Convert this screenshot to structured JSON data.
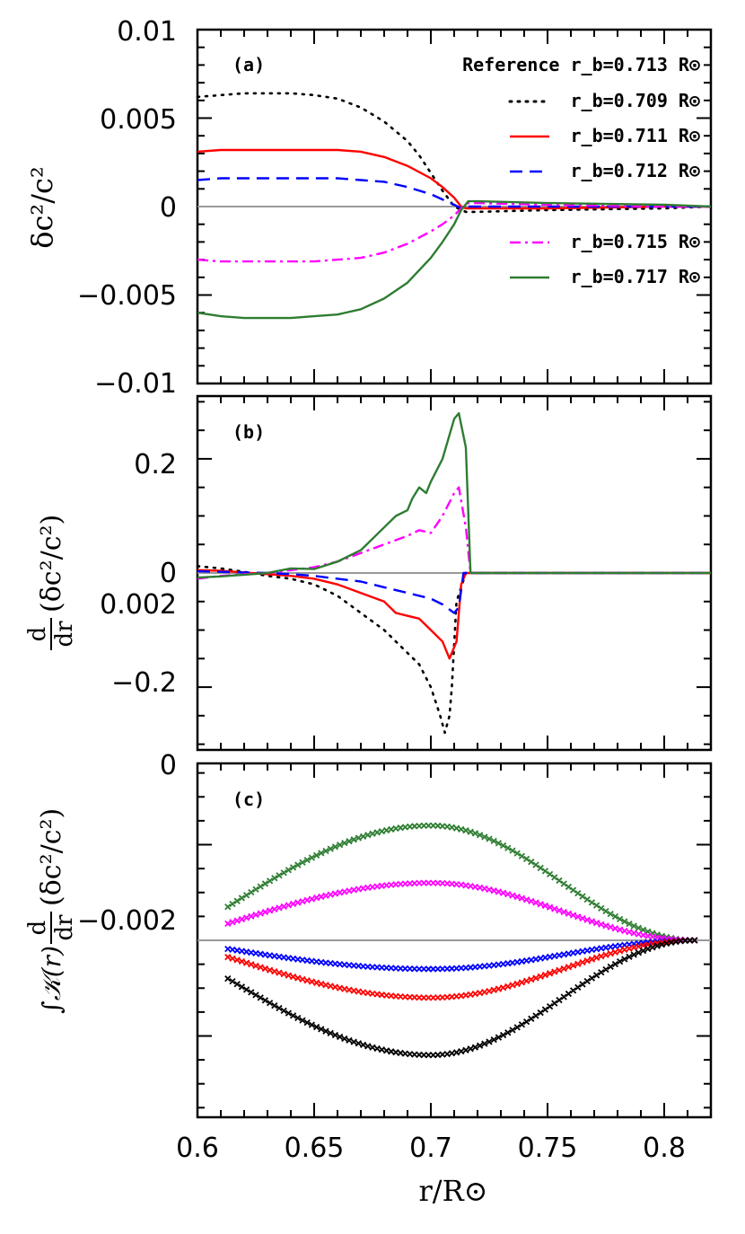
{
  "chart_data": [
    {
      "type": "line",
      "panel_label": "(a)",
      "ylabel": "δc²/c²",
      "ylim": [
        -0.01,
        0.01
      ],
      "xlim": [
        0.6,
        0.82
      ],
      "yticks": [
        -0.01,
        -0.005,
        0,
        0.005,
        0.01
      ],
      "ytick_labels": [
        "−0.01",
        "−0.005",
        "0",
        "0.005",
        "0.01"
      ],
      "legend_title": "Reference r_b=0.713 R⊙",
      "legend_placement": "top-right",
      "zero_line": true,
      "series": [
        {
          "name": "r_b=0.709 R⊙",
          "color": "#000000",
          "dash": "dotted",
          "x": [
            0.6,
            0.61,
            0.62,
            0.63,
            0.64,
            0.65,
            0.66,
            0.67,
            0.68,
            0.69,
            0.695,
            0.7,
            0.705,
            0.71,
            0.715,
            0.72,
            0.75,
            0.8,
            0.82
          ],
          "y": [
            0.0062,
            0.0063,
            0.0064,
            0.0064,
            0.0064,
            0.0063,
            0.0061,
            0.0056,
            0.0048,
            0.0037,
            0.0029,
            0.0019,
            0.0009,
            0.0,
            -0.0003,
            -0.0003,
            -0.0002,
            -0.0001,
            0.0
          ]
        },
        {
          "name": "r_b=0.711 R⊙",
          "color": "#ff0000",
          "dash": "solid",
          "x": [
            0.6,
            0.61,
            0.62,
            0.63,
            0.64,
            0.65,
            0.66,
            0.67,
            0.68,
            0.69,
            0.7,
            0.705,
            0.71,
            0.713,
            0.715,
            0.72,
            0.75,
            0.8,
            0.82
          ],
          "y": [
            0.0031,
            0.0032,
            0.0032,
            0.0032,
            0.0032,
            0.0032,
            0.0032,
            0.0031,
            0.0028,
            0.0023,
            0.0016,
            0.0011,
            0.0005,
            0.0,
            -0.0001,
            -0.0001,
            -0.0001,
            0.0,
            0.0
          ]
        },
        {
          "name": "r_b=0.712 R⊙",
          "color": "#0000ff",
          "dash": "dashed",
          "x": [
            0.6,
            0.61,
            0.62,
            0.63,
            0.64,
            0.65,
            0.66,
            0.67,
            0.68,
            0.69,
            0.7,
            0.705,
            0.71,
            0.713,
            0.715,
            0.72,
            0.75,
            0.8,
            0.82
          ],
          "y": [
            0.0015,
            0.0016,
            0.0016,
            0.0016,
            0.0016,
            0.0016,
            0.0016,
            0.0015,
            0.0014,
            0.0011,
            0.0007,
            0.0004,
            0.0001,
            -0.0001,
            0.0,
            0.0,
            0.0,
            0.0,
            0.0
          ]
        },
        {
          "name": "r_b=0.715 R⊙",
          "color": "#ff00ff",
          "dash": "dashdot",
          "x": [
            0.6,
            0.61,
            0.62,
            0.63,
            0.64,
            0.65,
            0.66,
            0.67,
            0.68,
            0.69,
            0.7,
            0.705,
            0.71,
            0.713,
            0.716,
            0.72,
            0.75,
            0.8,
            0.82
          ],
          "y": [
            -0.003,
            -0.0031,
            -0.0031,
            -0.0031,
            -0.0031,
            -0.0031,
            -0.003,
            -0.0029,
            -0.0026,
            -0.0021,
            -0.0014,
            -0.001,
            -0.0005,
            -0.0001,
            0.0002,
            0.0002,
            0.0001,
            0.0,
            0.0
          ]
        },
        {
          "name": "r_b=0.717 R⊙",
          "color": "#2e7d32",
          "dash": "solid",
          "x": [
            0.6,
            0.61,
            0.62,
            0.63,
            0.64,
            0.65,
            0.66,
            0.67,
            0.68,
            0.69,
            0.7,
            0.705,
            0.71,
            0.713,
            0.716,
            0.72,
            0.75,
            0.8,
            0.82
          ],
          "y": [
            -0.006,
            -0.0062,
            -0.0063,
            -0.0063,
            -0.0063,
            -0.0062,
            -0.0061,
            -0.0058,
            -0.0052,
            -0.0043,
            -0.0029,
            -0.002,
            -0.001,
            -0.0002,
            0.0003,
            0.0003,
            0.0002,
            0.0001,
            0.0
          ]
        }
      ]
    },
    {
      "type": "line",
      "panel_label": "(b)",
      "ylabel_top": "d",
      "ylabel_bottom": "dr",
      "ylabel_rest": "(δc²/c²)",
      "ylim": [
        -0.31,
        0.31
      ],
      "xlim": [
        0.6,
        0.82
      ],
      "yticks": [
        -0.2,
        0,
        0.2
      ],
      "ytick_labels": [
        "−0.2",
        "0",
        "0.2"
      ],
      "zero_line": true,
      "series": [
        {
          "name": "r_b=0.709 R⊙",
          "color": "#000000",
          "dash": "dotted",
          "x": [
            0.6,
            0.61,
            0.62,
            0.63,
            0.64,
            0.65,
            0.66,
            0.67,
            0.68,
            0.69,
            0.695,
            0.7,
            0.704,
            0.706,
            0.708,
            0.709,
            0.711,
            0.715,
            0.75,
            0.8,
            0.82
          ],
          "y": [
            0.012,
            0.008,
            0.002,
            -0.005,
            -0.01,
            -0.02,
            -0.04,
            -0.07,
            -0.1,
            -0.14,
            -0.16,
            -0.2,
            -0.25,
            -0.28,
            -0.25,
            -0.2,
            -0.05,
            0.0,
            0.0,
            0.0,
            0.0
          ]
        },
        {
          "name": "r_b=0.711 R⊙",
          "color": "#ff0000",
          "dash": "solid",
          "x": [
            0.6,
            0.61,
            0.62,
            0.63,
            0.64,
            0.65,
            0.66,
            0.67,
            0.68,
            0.685,
            0.69,
            0.695,
            0.7,
            0.705,
            0.708,
            0.711,
            0.713,
            0.715,
            0.75,
            0.8,
            0.82
          ],
          "y": [
            0.005,
            0.004,
            0.001,
            -0.002,
            -0.005,
            -0.01,
            -0.02,
            -0.035,
            -0.05,
            -0.07,
            -0.075,
            -0.08,
            -0.1,
            -0.12,
            -0.15,
            -0.12,
            -0.02,
            0.0,
            0.0,
            0.0,
            0.0
          ]
        },
        {
          "name": "r_b=0.712 R⊙",
          "color": "#0000ff",
          "dash": "dashed",
          "x": [
            0.6,
            0.61,
            0.62,
            0.63,
            0.64,
            0.65,
            0.66,
            0.67,
            0.68,
            0.69,
            0.7,
            0.705,
            0.71,
            0.712,
            0.714,
            0.716,
            0.75,
            0.8,
            0.82
          ],
          "y": [
            0.003,
            0.002,
            0.001,
            0.0,
            -0.002,
            -0.005,
            -0.01,
            -0.015,
            -0.025,
            -0.035,
            -0.045,
            -0.055,
            -0.07,
            -0.06,
            0.0,
            0.0,
            0.0,
            0.0,
            0.0
          ]
        },
        {
          "name": "r_b=0.715 R⊙",
          "color": "#ff00ff",
          "dash": "dashdot",
          "x": [
            0.6,
            0.61,
            0.62,
            0.63,
            0.64,
            0.65,
            0.66,
            0.67,
            0.68,
            0.69,
            0.695,
            0.7,
            0.705,
            0.71,
            0.712,
            0.715,
            0.717,
            0.75,
            0.8,
            0.82
          ],
          "y": [
            -0.01,
            -0.005,
            -0.002,
            0.0,
            0.005,
            0.01,
            0.02,
            0.035,
            0.05,
            0.065,
            0.075,
            0.07,
            0.1,
            0.14,
            0.15,
            0.08,
            0.0,
            0.0,
            0.0,
            0.0
          ]
        },
        {
          "name": "r_b=0.717 R⊙",
          "color": "#2e7d32",
          "dash": "solid",
          "x": [
            0.6,
            0.61,
            0.62,
            0.63,
            0.64,
            0.65,
            0.66,
            0.67,
            0.68,
            0.685,
            0.69,
            0.692,
            0.695,
            0.698,
            0.7,
            0.705,
            0.71,
            0.712,
            0.715,
            0.717,
            0.75,
            0.8,
            0.82
          ],
          "y": [
            -0.008,
            -0.006,
            -0.003,
            0.0,
            0.008,
            0.007,
            0.02,
            0.04,
            0.08,
            0.1,
            0.11,
            0.13,
            0.15,
            0.14,
            0.16,
            0.2,
            0.27,
            0.28,
            0.22,
            0.0,
            0.0,
            0.0,
            0.0
          ]
        }
      ]
    },
    {
      "type": "scatter",
      "panel_label": "(c)",
      "ylabel_pre": "∫𝒦(r)",
      "ylabel_top": "d",
      "ylabel_bottom": "dr",
      "ylabel_rest": "(δc²/c²)",
      "xlabel": "r/R⊙",
      "ylim": [
        -0.0037,
        0.0037
      ],
      "xlim": [
        0.6,
        0.82
      ],
      "xticks": [
        0.6,
        0.65,
        0.7,
        0.75,
        0.8
      ],
      "xtick_labels": [
        "0.6",
        "0.65",
        "0.7",
        "0.75",
        "0.8"
      ],
      "yticks": [
        -0.002,
        0,
        0.002
      ],
      "ytick_labels": [
        "−0.002",
        "0",
        "0.002"
      ],
      "zero_line": true,
      "marker": "x",
      "x_range": [
        0.613,
        0.813
      ],
      "peak_x": 0.7,
      "series": [
        {
          "name": "r_b=0.717 R⊙",
          "color": "#2e7d32",
          "y_start": 0.0007,
          "y_peak": 0.0024,
          "y_end": 0.0
        },
        {
          "name": "r_b=0.715 R⊙",
          "color": "#ff00ff",
          "y_start": 0.00035,
          "y_peak": 0.0012,
          "y_end": 0.0
        },
        {
          "name": "r_b=0.712 R⊙",
          "color": "#0000ff",
          "y_start": -0.00018,
          "y_peak": -0.0006,
          "y_end": 0.0
        },
        {
          "name": "r_b=0.711 R⊙",
          "color": "#ff0000",
          "y_start": -0.00035,
          "y_peak": -0.0012,
          "y_end": 0.0
        },
        {
          "name": "r_b=0.709 R⊙",
          "color": "#000000",
          "y_start": -0.0008,
          "y_peak": -0.0024,
          "y_end": 0.0
        }
      ]
    }
  ]
}
